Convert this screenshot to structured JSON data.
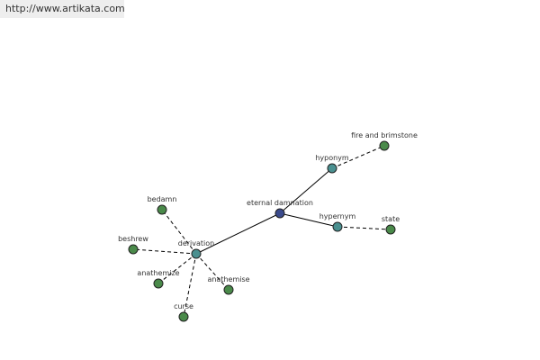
{
  "header": {
    "url": "http://www.artikata.com"
  },
  "nodes": [
    {
      "label": "eternal damnation"
    },
    {
      "label": "hyponym"
    },
    {
      "label": "fire and brimstone"
    },
    {
      "label": "hypernym"
    },
    {
      "label": "state"
    },
    {
      "label": "derivation"
    },
    {
      "label": "bedamn"
    },
    {
      "label": "beshrew"
    },
    {
      "label": "anathemize"
    },
    {
      "label": "anathemise"
    },
    {
      "label": "curse"
    }
  ]
}
